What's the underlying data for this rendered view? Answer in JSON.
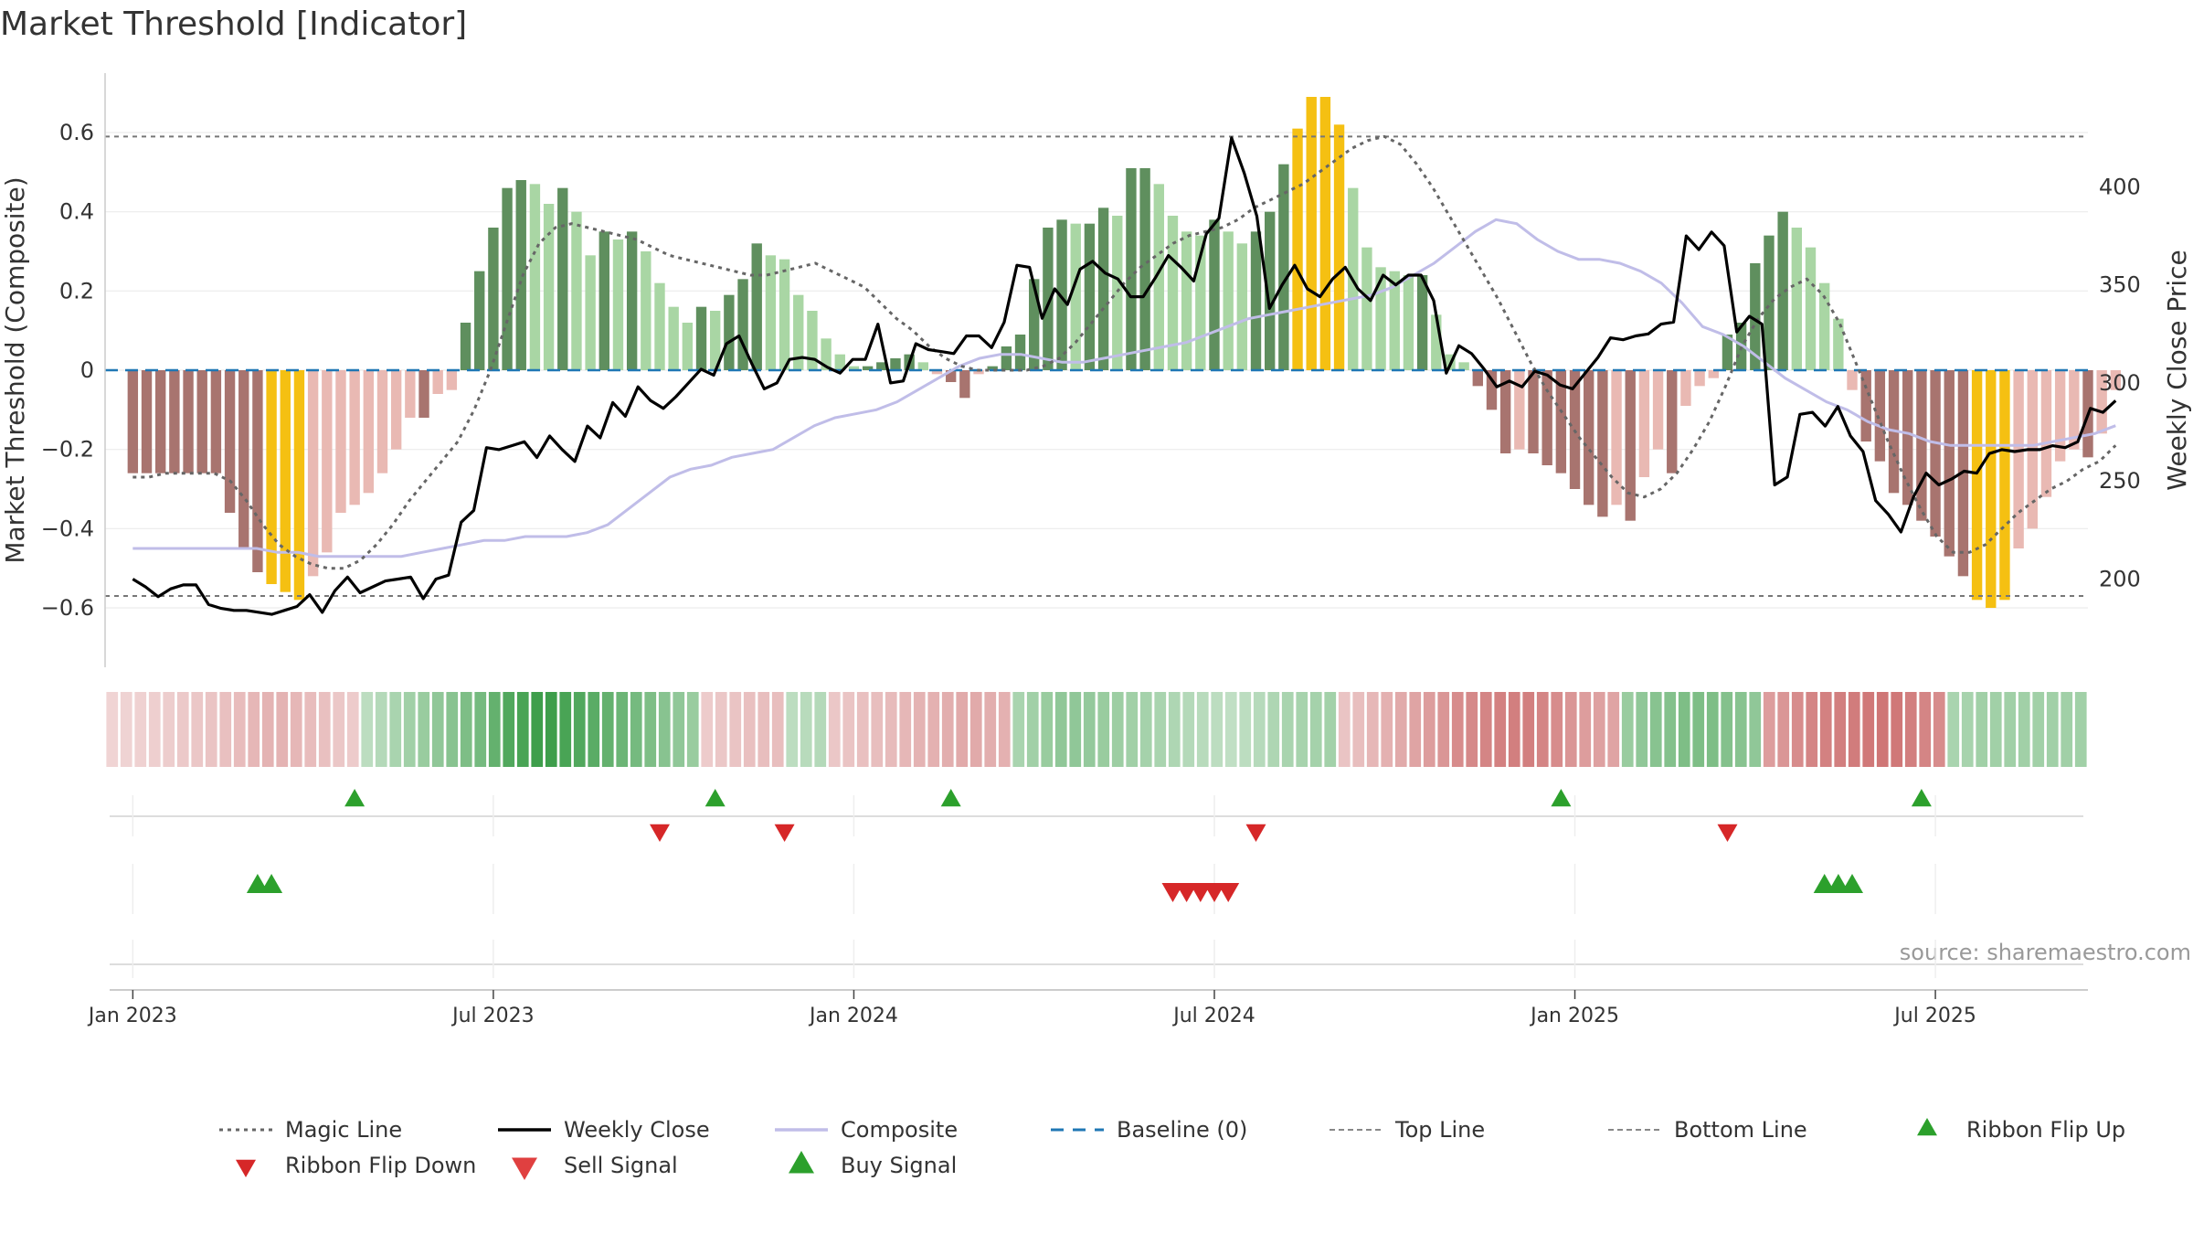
{
  "chart_data": {
    "type": "bar",
    "title": "Market Threshold [Indicator]",
    "ylabel": "Market Threshold (Composite)",
    "y2label": "Weekly Close Price",
    "source": "source: sharemaestro.com",
    "ylim": [
      -0.75,
      0.75
    ],
    "y2lim": [
      155,
      458
    ],
    "yticks": [
      -0.6,
      -0.4,
      -0.2,
      0,
      0.2,
      0.4,
      0.6
    ],
    "yticklabels": [
      "−0.6",
      "−0.4",
      "−0.2",
      "0",
      "0.2",
      "0.4",
      "0.6"
    ],
    "y2ticks": [
      200,
      250,
      300,
      350,
      400
    ],
    "y2ticklabels": [
      "200",
      "250",
      "300",
      "350",
      "400"
    ],
    "xticks": [
      "Jan 2023",
      "Jul 2023",
      "Jan 2024",
      "Jul 2024",
      "Jan 2025",
      "Jul 2025"
    ],
    "xtick_weeks": [
      0,
      26,
      52,
      78,
      104,
      130
    ],
    "week_range": [
      -2,
      141
    ],
    "top_line": 0.59,
    "bottom_line": -0.57,
    "baseline": 0,
    "grid": true,
    "legend_placement": "bottom",
    "bars": [
      -0.26,
      -0.26,
      -0.26,
      -0.26,
      -0.26,
      -0.26,
      -0.26,
      -0.36,
      -0.45,
      -0.51,
      -0.54,
      -0.56,
      -0.58,
      -0.52,
      -0.46,
      -0.36,
      -0.34,
      -0.31,
      -0.26,
      -0.2,
      -0.12,
      -0.12,
      -0.06,
      -0.05,
      0.12,
      0.25,
      0.36,
      0.46,
      0.48,
      0.47,
      0.42,
      0.46,
      0.4,
      0.29,
      0.35,
      0.33,
      0.35,
      0.3,
      0.22,
      0.16,
      0.12,
      0.16,
      0.15,
      0.19,
      0.23,
      0.32,
      0.29,
      0.28,
      0.19,
      0.15,
      0.08,
      0.04,
      0.01,
      0.01,
      0.02,
      0.03,
      0.04,
      0.02,
      -0.01,
      -0.03,
      -0.07,
      -0.01,
      0.01,
      0.06,
      0.09,
      0.23,
      0.36,
      0.38,
      0.37,
      0.37,
      0.41,
      0.39,
      0.51,
      0.51,
      0.47,
      0.39,
      0.35,
      0.34,
      0.38,
      0.35,
      0.32,
      0.35,
      0.4,
      0.52,
      0.61,
      0.69,
      0.69,
      0.62,
      0.46,
      0.31,
      0.26,
      0.25,
      0.24,
      0.24,
      0.14,
      0.04,
      0.02,
      -0.04,
      -0.1,
      -0.21,
      -0.2,
      -0.21,
      -0.24,
      -0.26,
      -0.3,
      -0.34,
      -0.37,
      -0.34,
      -0.38,
      -0.27,
      -0.2,
      -0.26,
      -0.09,
      -0.04,
      -0.02,
      0.09,
      0.12,
      0.27,
      0.34,
      0.4,
      0.36,
      0.31,
      0.22,
      0.13,
      -0.05,
      -0.18,
      -0.23,
      -0.31,
      -0.34,
      -0.38,
      -0.42,
      -0.47,
      -0.52,
      -0.58,
      -0.6,
      -0.58,
      -0.45,
      -0.4,
      -0.32,
      -0.23,
      -0.2,
      -0.22,
      -0.16,
      -0.05
    ],
    "close": [
      200,
      196,
      191,
      195,
      197,
      197,
      187,
      185,
      184,
      184,
      183,
      182,
      184,
      186,
      192,
      183,
      194,
      201,
      193,
      196,
      199,
      200,
      201,
      190,
      200,
      202,
      229,
      235,
      267,
      266,
      268,
      270,
      262,
      273,
      266,
      260,
      278,
      272,
      290,
      283,
      298,
      291,
      287,
      293,
      300,
      307,
      304,
      320,
      324,
      310,
      297,
      300,
      312,
      313,
      312,
      308,
      305,
      312,
      312,
      330,
      300,
      301,
      320,
      317,
      316,
      315,
      324,
      324,
      318,
      331,
      360,
      359,
      333,
      348,
      340,
      358,
      362,
      356,
      353,
      344,
      344,
      354,
      365,
      359,
      352,
      376,
      384,
      425,
      407,
      385,
      338,
      350,
      360,
      348,
      344,
      353,
      359,
      348,
      342,
      355,
      350,
      355,
      355,
      342,
      305,
      319,
      315,
      307,
      298,
      301,
      298,
      306,
      304,
      299,
      297,
      305,
      313,
      323,
      322,
      324,
      325,
      330,
      331,
      375,
      368,
      377,
      370,
      326,
      334,
      330,
      248,
      252,
      284,
      285,
      278,
      288,
      273,
      265,
      240,
      233,
      224,
      242,
      254,
      248,
      251,
      255,
      254,
      264,
      266,
      265,
      266,
      266,
      268,
      267,
      270,
      287,
      285,
      291
    ],
    "magic_line": [
      -0.27,
      -0.27,
      -0.26,
      -0.26,
      -0.26,
      -0.26,
      -0.28,
      -0.33,
      -0.39,
      -0.44,
      -0.47,
      -0.49,
      -0.5,
      -0.5,
      -0.48,
      -0.44,
      -0.39,
      -0.33,
      -0.28,
      -0.23,
      -0.18,
      -0.1,
      0.0,
      0.12,
      0.24,
      0.32,
      0.36,
      0.37,
      0.36,
      0.35,
      0.34,
      0.33,
      0.31,
      0.29,
      0.28,
      0.27,
      0.26,
      0.25,
      0.24,
      0.24,
      0.25,
      0.26,
      0.27,
      0.25,
      0.23,
      0.21,
      0.17,
      0.13,
      0.1,
      0.06,
      0.03,
      0.01,
      0.0,
      0.0,
      0.0,
      0.0,
      0.01,
      0.03,
      0.07,
      0.12,
      0.17,
      0.22,
      0.26,
      0.29,
      0.32,
      0.34,
      0.35,
      0.36,
      0.38,
      0.41,
      0.43,
      0.45,
      0.47,
      0.5,
      0.53,
      0.56,
      0.58,
      0.59,
      0.57,
      0.52,
      0.46,
      0.39,
      0.32,
      0.25,
      0.18,
      0.1,
      0.02,
      -0.05,
      -0.11,
      -0.17,
      -0.22,
      -0.27,
      -0.31,
      -0.32,
      -0.3,
      -0.26,
      -0.2,
      -0.13,
      -0.04,
      0.06,
      0.13,
      0.18,
      0.21,
      0.23,
      0.19,
      0.12,
      0.02,
      -0.08,
      -0.18,
      -0.27,
      -0.35,
      -0.42,
      -0.46,
      -0.46,
      -0.44,
      -0.4,
      -0.36,
      -0.33,
      -0.3,
      -0.28,
      -0.25,
      -0.23,
      -0.19
    ],
    "composite": [
      -0.45,
      -0.45,
      -0.45,
      -0.45,
      -0.45,
      -0.45,
      -0.45,
      -0.46,
      -0.46,
      -0.47,
      -0.47,
      -0.47,
      -0.47,
      -0.47,
      -0.46,
      -0.45,
      -0.44,
      -0.43,
      -0.43,
      -0.42,
      -0.42,
      -0.42,
      -0.41,
      -0.39,
      -0.35,
      -0.31,
      -0.27,
      -0.25,
      -0.24,
      -0.22,
      -0.21,
      -0.2,
      -0.17,
      -0.14,
      -0.12,
      -0.11,
      -0.1,
      -0.08,
      -0.05,
      -0.02,
      0.01,
      0.03,
      0.04,
      0.04,
      0.03,
      0.02,
      0.02,
      0.03,
      0.04,
      0.05,
      0.06,
      0.07,
      0.09,
      0.11,
      0.13,
      0.14,
      0.15,
      0.16,
      0.17,
      0.18,
      0.19,
      0.21,
      0.24,
      0.27,
      0.31,
      0.35,
      0.38,
      0.37,
      0.33,
      0.3,
      0.28,
      0.28,
      0.27,
      0.25,
      0.22,
      0.17,
      0.11,
      0.09,
      0.06,
      0.02,
      -0.02,
      -0.05,
      -0.08,
      -0.1,
      -0.13,
      -0.15,
      -0.16,
      -0.18,
      -0.19,
      -0.19,
      -0.19,
      -0.19,
      -0.19,
      -0.18,
      -0.17,
      -0.16,
      -0.14
    ],
    "ribbon": [
      -0.1,
      -0.11,
      -0.12,
      -0.13,
      -0.14,
      -0.16,
      -0.18,
      -0.2,
      -0.22,
      -0.25,
      -0.28,
      -0.3,
      -0.3,
      -0.28,
      -0.25,
      -0.22,
      -0.18,
      -0.15,
      0.2,
      0.25,
      0.3,
      0.35,
      0.4,
      0.45,
      0.5,
      0.55,
      0.6,
      0.7,
      0.8,
      0.85,
      0.9,
      0.9,
      0.85,
      0.8,
      0.75,
      0.7,
      0.65,
      0.6,
      0.55,
      0.5,
      0.45,
      0.4,
      -0.15,
      -0.18,
      -0.2,
      -0.22,
      -0.23,
      -0.24,
      0.2,
      0.22,
      0.25,
      -0.18,
      -0.2,
      -0.22,
      -0.24,
      -0.26,
      -0.28,
      -0.3,
      -0.32,
      -0.34,
      -0.36,
      -0.36,
      -0.34,
      -0.32,
      0.3,
      0.35,
      0.4,
      0.45,
      0.45,
      0.42,
      0.4,
      0.38,
      0.35,
      0.33,
      0.3,
      0.28,
      0.25,
      0.22,
      0.2,
      0.18,
      0.2,
      0.24,
      0.28,
      0.3,
      0.32,
      0.33,
      0.34,
      -0.2,
      -0.24,
      -0.28,
      -0.32,
      -0.36,
      -0.4,
      -0.45,
      -0.5,
      -0.55,
      -0.58,
      -0.6,
      -0.62,
      -0.64,
      -0.64,
      -0.6,
      -0.55,
      -0.5,
      -0.45,
      -0.42,
      -0.4,
      0.4,
      0.45,
      0.5,
      0.52,
      0.55,
      0.55,
      0.55,
      0.52,
      0.5,
      0.45,
      -0.45,
      -0.5,
      -0.55,
      -0.6,
      -0.62,
      -0.64,
      -0.66,
      -0.68,
      -0.7,
      -0.68,
      -0.64,
      -0.6,
      -0.55,
      0.3,
      0.32,
      0.35,
      0.35,
      0.35,
      0.35,
      0.35,
      0.35,
      0.35,
      0.35
    ],
    "buy_signals": [
      16,
      42,
      59,
      103,
      129
    ],
    "sell_signals": [
      38,
      47,
      81,
      115
    ],
    "ribbon_flip_up": [
      9,
      10,
      122,
      123,
      124
    ],
    "ribbon_flip_down": [
      75,
      76,
      77,
      78,
      79
    ],
    "colors": {
      "strong_up": "#5f8f5e",
      "weak_up": "#a9d6a4",
      "strong_down": "#a8746f",
      "weak_down": "#e9b9b3",
      "extreme": "#f5c012",
      "close": "#000000",
      "composite": "#c0bde8",
      "magic": "#666666",
      "baseline": "#1f77b4",
      "buy": "#2ca02c",
      "sell": "#d62728"
    },
    "legend": [
      {
        "label": "Magic Line",
        "style": "dotted",
        "color": "#666666"
      },
      {
        "label": "Weekly Close",
        "style": "solid",
        "color": "#000000"
      },
      {
        "label": "Composite",
        "style": "solid",
        "color": "#c0bde8"
      },
      {
        "label": "Baseline (0)",
        "style": "dashed",
        "color": "#1f77b4"
      },
      {
        "label": "Top Line",
        "style": "dashed-thin",
        "color": "#888888"
      },
      {
        "label": "Bottom Line",
        "style": "dashed-thin",
        "color": "#888888"
      },
      {
        "label": "Ribbon Flip Up",
        "style": "tri-up",
        "color": "#2ca02c"
      },
      {
        "label": "Ribbon Flip Down",
        "style": "tri-down",
        "color": "#d62728"
      },
      {
        "label": "Sell Signal",
        "style": "tri-down-large",
        "color": "#e04040"
      },
      {
        "label": "Buy Signal",
        "style": "tri-up-large",
        "color": "#2ca02c"
      }
    ]
  }
}
